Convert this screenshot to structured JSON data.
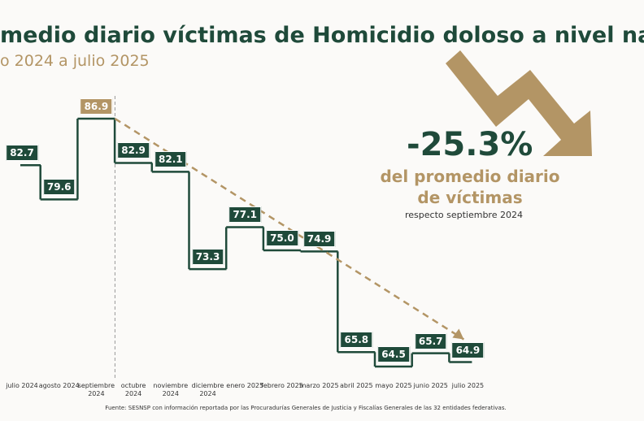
{
  "chart_data": {
    "type": "step",
    "title": "medio diario víctimas de Homicidio doloso a nivel nacio",
    "subtitle": "o 2024 a julio 2025",
    "categories": [
      "julio 2024",
      "agosto 2024",
      "septiembre 2024",
      "octubre 2024",
      "noviembre 2024",
      "diciembre 2024",
      "enero 2025",
      "febrero 2025",
      "marzo 2025",
      "abril 2025",
      "mayo 2025",
      "junio 2025",
      "julio 2025"
    ],
    "values": [
      82.7,
      79.6,
      86.9,
      82.9,
      82.1,
      73.3,
      77.1,
      75.0,
      74.9,
      65.8,
      64.5,
      65.7,
      64.9
    ],
    "value_labels": [
      "82.7",
      "79.6",
      "86.9",
      "82.9",
      "82.1",
      "73.3",
      "77.1",
      "75.0",
      "74.9",
      "65.8",
      "64.5",
      "65.7",
      "64.9"
    ],
    "color": "#1f4a3a",
    "label_colors": [
      "#1f4a3a",
      "#1f4a3a",
      "#b39565",
      "#1f4a3a",
      "#1f4a3a",
      "#1f4a3a",
      "#1f4a3a",
      "#1f4a3a",
      "#1f4a3a",
      "#1f4a3a",
      "#1f4a3a",
      "#1f4a3a",
      "#1f4a3a"
    ],
    "trend_color": "#b39565",
    "annotation": {
      "change": "-25.3%",
      "text": [
        "del promedio diario",
        "de víctimas"
      ],
      "note": "respecto septiembre 2024"
    },
    "source": "Fuente: SESNSP con información reportada por las Procuradurías Generales de Justicia y Fiscalías Generales de las 32 entidades federativas."
  }
}
